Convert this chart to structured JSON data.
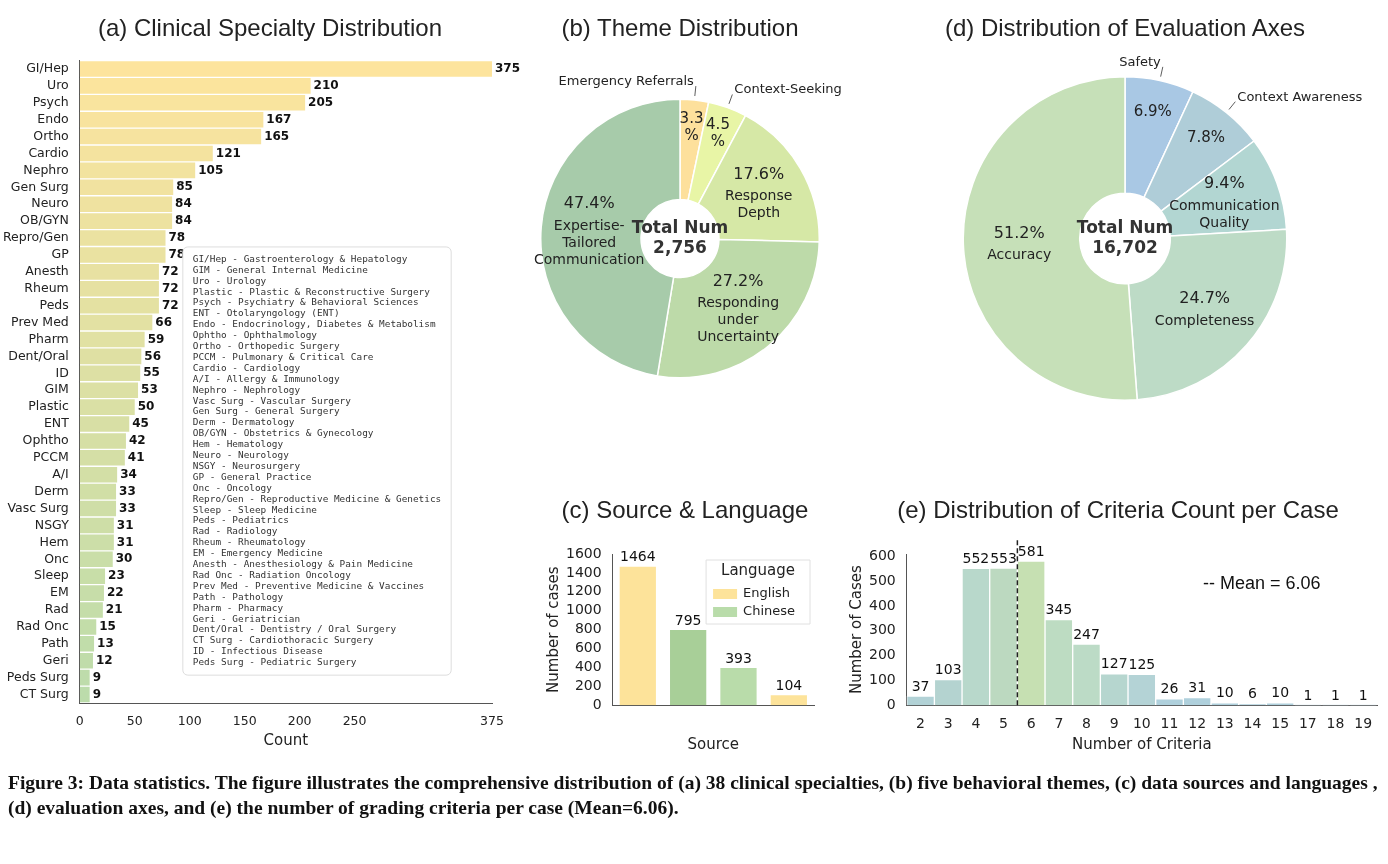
{
  "chart_data": [
    {
      "type": "bar",
      "title": "(a) Clinical Specialty Distribution",
      "orientation": "horizontal",
      "xlabel": "Count",
      "xlim": [
        0,
        375
      ],
      "xticks": [
        0,
        50,
        100,
        150,
        200,
        250,
        375
      ],
      "data_labels": true,
      "categories": [
        "GI/Hep",
        "Uro",
        "Psych",
        "Endo",
        "Ortho",
        "Cardio",
        "Nephro",
        "Gen Surg",
        "Neuro",
        "OB/GYN",
        "Repro/Gen",
        "GP",
        "Anesth",
        "Rheum",
        "Peds",
        "Prev Med",
        "Pharm",
        "Dent/Oral",
        "ID",
        "GIM",
        "Plastic",
        "ENT",
        "Ophtho",
        "PCCM",
        "A/I",
        "Derm",
        "Vasc Surg",
        "NSGY",
        "Hem",
        "Onc",
        "Sleep",
        "EM",
        "Rad",
        "Rad Onc",
        "Path",
        "Geri",
        "Peds Surg",
        "CT Surg"
      ],
      "values": [
        375,
        210,
        205,
        167,
        165,
        121,
        105,
        85,
        84,
        84,
        78,
        78,
        72,
        72,
        72,
        66,
        59,
        56,
        55,
        53,
        50,
        45,
        42,
        41,
        34,
        33,
        33,
        31,
        31,
        30,
        23,
        22,
        21,
        15,
        13,
        12,
        9,
        9
      ],
      "colors": [
        "#fde49d",
        "#fbe49d",
        "#f9e49e",
        "#f8e39e",
        "#f6e39f",
        "#f4e39f",
        "#f2e39f",
        "#f1e2a0",
        "#efe2a0",
        "#ede2a0",
        "#ebe2a1",
        "#eae2a1",
        "#e8e1a2",
        "#e6e1a2",
        "#e4e1a2",
        "#e3e1a3",
        "#e1e1a3",
        "#dfe0a3",
        "#dde0a4",
        "#dce0a4",
        "#dae0a5",
        "#d8dfa5",
        "#d6dfa5",
        "#d5dfa6",
        "#d3dfa6",
        "#d1dfa6",
        "#cfdea7",
        "#cedea7",
        "#ccdea8",
        "#cadea8",
        "#c8dea8",
        "#c7dda9",
        "#c5dda9",
        "#c3dda9",
        "#c1ddaa",
        "#c0dcaa",
        "#bedcab",
        "#bcdcab"
      ],
      "annotations": [
        "GI/Hep - Gastroenterology & Hepatology",
        "GIM - General Internal Medicine",
        "Uro - Urology",
        "Plastic - Plastic & Reconstructive Surgery",
        "Psych - Psychiatry & Behavioral Sciences",
        "ENT - Otolaryngology (ENT)",
        "Endo - Endocrinology, Diabetes & Metabolism",
        "Ophtho - Ophthalmology",
        "Ortho - Orthopedic Surgery",
        "PCCM - Pulmonary & Critical Care",
        "Cardio - Cardiology",
        "A/I - Allergy & Immunology",
        "Nephro - Nephrology",
        "Vasc Surg - Vascular Surgery",
        "Gen Surg - General Surgery",
        "Derm - Dermatology",
        "OB/GYN - Obstetrics & Gynecology",
        "Hem - Hematology",
        "Neuro - Neurology",
        "NSGY - Neurosurgery",
        "GP - General Practice",
        "Onc - Oncology",
        "Repro/Gen - Reproductive Medicine & Genetics",
        "Sleep - Sleep Medicine",
        "Peds - Pediatrics",
        "Rad - Radiology",
        "Rheum - Rheumatology",
        "EM - Emergency Medicine",
        "Anesth - Anesthesiology & Pain Medicine",
        "Rad Onc - Radiation Oncology",
        "Prev Med - Preventive Medicine & Vaccines",
        "Path - Pathology",
        "Pharm - Pharmacy",
        "Geri - Geriatrician",
        "Dent/Oral - Dentistry / Oral Surgery",
        "CT Surg - Cardiothoracic Surgery",
        "ID - Infectious Disease",
        "Peds Surg - Pediatric Surgery"
      ]
    },
    {
      "type": "donut",
      "title": "(b) Theme Distribution",
      "categories": [
        "Emergency Referrals",
        "Context-Seeking",
        "Response Depth",
        "Responding under Uncertainty",
        "Expertise-Tailored Communication"
      ],
      "values": [
        3.3,
        4.5,
        17.6,
        27.2,
        47.4
      ],
      "value_labels": [
        "3.3%",
        "4.5%",
        "17.6%",
        "27.2%",
        "47.4%"
      ],
      "colors": [
        "#fde09c",
        "#e8f5a6",
        "#d6e8a6",
        "#bddaa9",
        "#a7cbaa"
      ],
      "annotations": [
        "Total Num",
        "2,756"
      ]
    },
    {
      "type": "donut",
      "title": "(d) Distribution of Evaluation Axes",
      "categories": [
        "Safety",
        "Context Awareness",
        "Communication Quality",
        "Completeness",
        "Accuracy"
      ],
      "values": [
        6.9,
        7.8,
        9.4,
        24.7,
        51.2
      ],
      "value_labels": [
        "6.9%",
        "7.8%",
        "9.4%",
        "24.7%",
        "51.2%"
      ],
      "colors": [
        "#a9c8e4",
        "#afcdd8",
        "#b2d6d2",
        "#bddbc6",
        "#c6e0b8"
      ],
      "annotations": [
        "Total Num",
        "16,702"
      ]
    },
    {
      "type": "bar",
      "title": "(c) Source & Language",
      "categories": [
        null,
        null,
        null,
        null
      ],
      "xlabel": "Source",
      "ylabel": "Number of cases",
      "ylim": [
        0,
        1600
      ],
      "yticks": [
        0,
        200,
        400,
        600,
        800,
        1000,
        1200,
        1400,
        1600
      ],
      "data_labels": true,
      "legend": "top right",
      "legend_title": "Language",
      "series": [
        {
          "name": "English",
          "color": "#fde39a",
          "values": [
            1464,
            null,
            null,
            104
          ]
        },
        {
          "name": "Chinese",
          "color": "#b9dcaa",
          "colors": [
            "#b9dcaa",
            "#a8cf98",
            "#b9dcaa",
            "#b9dcaa"
          ],
          "values": [
            null,
            795,
            393,
            null
          ]
        }
      ]
    },
    {
      "type": "bar",
      "title": "(e) Distribution of Criteria Count per Case",
      "categories": [
        "2",
        "3",
        "4",
        "5",
        "6",
        "7",
        "8",
        "9",
        "10",
        "11",
        "12",
        "13",
        "14",
        "15",
        "17",
        "18",
        "19"
      ],
      "values": [
        37,
        103,
        552,
        553,
        581,
        345,
        247,
        127,
        125,
        26,
        31,
        10,
        6,
        10,
        1,
        1,
        1
      ],
      "colors": [
        "#b2d2d6",
        "#b4d3d0",
        "#b8d8cb",
        "#bcd9c0",
        "#c6e0b2",
        "#bddcc2",
        "#bcdbc6",
        "#b6d6cf",
        "#b4d3d6",
        "#afd0dc",
        "#afd0dc",
        "#afd0dc",
        "#afd0dc",
        "#afd0dc",
        "#afd0dc",
        "#afd0dc",
        "#afd0dc"
      ],
      "xlabel": "Number of Criteria",
      "ylabel": "Number of Cases",
      "ylim": [
        0,
        610
      ],
      "yticks": [
        0,
        100,
        200,
        300,
        400,
        500,
        600
      ],
      "data_labels": true,
      "annotations": [
        "-- Mean = 6.06"
      ]
    },
    {
      "type": "other",
      "annotations": [
        "Figure 3: Data statistics. The figure illustrates the comprehensive distribution of (a) 38 clinical specialties, (b) five behavioral themes, (c) data sources and languages , (d) evaluation axes, and (e) the number of grading criteria per case (Mean=6.06)."
      ]
    }
  ]
}
